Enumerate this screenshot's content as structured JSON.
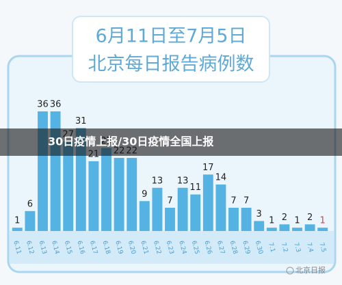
{
  "chart_data": {
    "type": "bar",
    "title": "6月11日至7月5日",
    "subtitle": "北京每日报告病例数",
    "categories": [
      "6.11",
      "6.12",
      "6.13",
      "6.14",
      "6.15",
      "6.16",
      "6.17",
      "6.18",
      "6.19",
      "6.20",
      "6.21",
      "6.22",
      "6.23",
      "6.24",
      "6.25",
      "6.26",
      "6.27",
      "6.28",
      "6.29",
      "6.30",
      "7.1",
      "7.2",
      "7.3",
      "7.4",
      "7.5"
    ],
    "values": [
      1,
      6,
      36,
      36,
      27,
      31,
      21,
      25,
      22,
      22,
      9,
      13,
      7,
      13,
      11,
      17,
      14,
      7,
      7,
      3,
      1,
      2,
      1,
      2,
      1
    ],
    "color": "#55b3e3",
    "value_label_colors": [
      "#222",
      "#222",
      "#222",
      "#222",
      "#222",
      "#222",
      "#222",
      "#222",
      "#222",
      "#222",
      "#222",
      "#222",
      "#222",
      "#222",
      "#222",
      "#222",
      "#222",
      "#222",
      "#222",
      "#222",
      "#222",
      "#222",
      "#222",
      "#222",
      "#e23b3b"
    ]
  },
  "overlay_caption": "30日疫情上报/30日疫情全国上报",
  "watermark": "北京日报"
}
